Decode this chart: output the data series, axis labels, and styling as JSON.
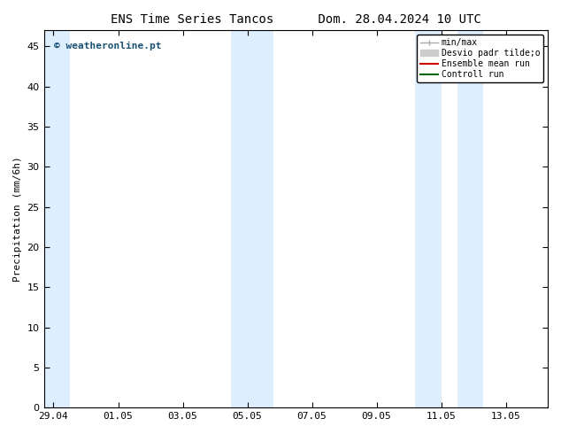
{
  "title_left": "ENS Time Series Tancos",
  "title_right": "Dom. 28.04.2024 10 UTC",
  "ylabel": "Precipitation (mm/6h)",
  "ylim": [
    0,
    47
  ],
  "yticks": [
    0,
    5,
    10,
    15,
    20,
    25,
    30,
    35,
    40,
    45
  ],
  "xtick_labels": [
    "29.04",
    "01.05",
    "03.05",
    "05.05",
    "07.05",
    "09.05",
    "11.05",
    "13.05"
  ],
  "xtick_positions": [
    0,
    2,
    4,
    6,
    8,
    10,
    12,
    14
  ],
  "xlim": [
    -0.3,
    15.3
  ],
  "x_total_days": 15,
  "shaded_bands": [
    [
      -0.3,
      0.5
    ],
    [
      5.5,
      6.8
    ],
    [
      11.2,
      12.0
    ],
    [
      12.5,
      13.3
    ]
  ],
  "shade_color": "#ddeeff",
  "background_color": "#ffffff",
  "plot_bg_color": "#ffffff",
  "legend_items": [
    {
      "label": "min/max",
      "color": "#aaaaaa",
      "lw": 1.0,
      "style": "solid"
    },
    {
      "label": "Desvio padr tilde;o",
      "color": "#cccccc",
      "lw": 6,
      "style": "solid"
    },
    {
      "label": "Ensemble mean run",
      "color": "#cc0000",
      "lw": 1.5,
      "style": "solid"
    },
    {
      "label": "Controll run",
      "color": "#006600",
      "lw": 1.5,
      "style": "solid"
    }
  ],
  "watermark": "© weatheronline.pt",
  "watermark_color": "#1a5276",
  "title_fontsize": 10,
  "axis_fontsize": 8,
  "tick_fontsize": 8
}
